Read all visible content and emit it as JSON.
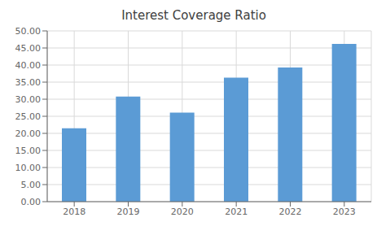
{
  "chart_data": {
    "type": "bar",
    "title": "Interest Coverage Ratio",
    "categories": [
      "2018",
      "2019",
      "2020",
      "2021",
      "2022",
      "2023"
    ],
    "values": [
      21.5,
      30.8,
      26.1,
      36.3,
      39.3,
      46.2
    ],
    "color": "#5b9bd5",
    "ylim": [
      0,
      50
    ],
    "yticks": [
      {
        "value": 0,
        "label": "0.00"
      },
      {
        "value": 5,
        "label": "5.00"
      },
      {
        "value": 10,
        "label": "10.00"
      },
      {
        "value": 15,
        "label": "15.00"
      },
      {
        "value": 20,
        "label": "20.00"
      },
      {
        "value": 25,
        "label": "25.00"
      },
      {
        "value": 30,
        "label": "30.00"
      },
      {
        "value": 35,
        "label": "35.00"
      },
      {
        "value": 40,
        "label": "40.00"
      },
      {
        "value": 45,
        "label": "45.00"
      },
      {
        "value": 50,
        "label": "50.00"
      }
    ],
    "grid": true
  }
}
